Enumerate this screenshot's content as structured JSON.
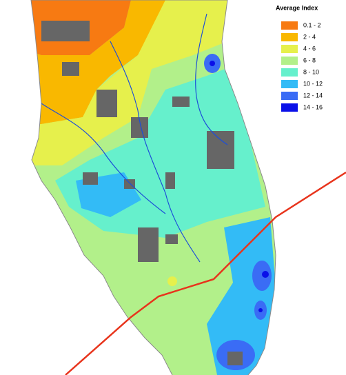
{
  "legend": {
    "title": "Average Index",
    "items": [
      {
        "label": "0.1 - 2",
        "color": "#f77a12"
      },
      {
        "label": "2 - 4",
        "color": "#f9b800"
      },
      {
        "label": "4 - 6",
        "color": "#e6f04c"
      },
      {
        "label": "6 - 8",
        "color": "#b2f08a"
      },
      {
        "label": "8 - 10",
        "color": "#66f0cc"
      },
      {
        "label": "10 - 12",
        "color": "#33bbf6"
      },
      {
        "label": "12 - 14",
        "color": "#3a6cf5"
      },
      {
        "label": "14 - 16",
        "color": "#0a10e8"
      }
    ]
  }
}
